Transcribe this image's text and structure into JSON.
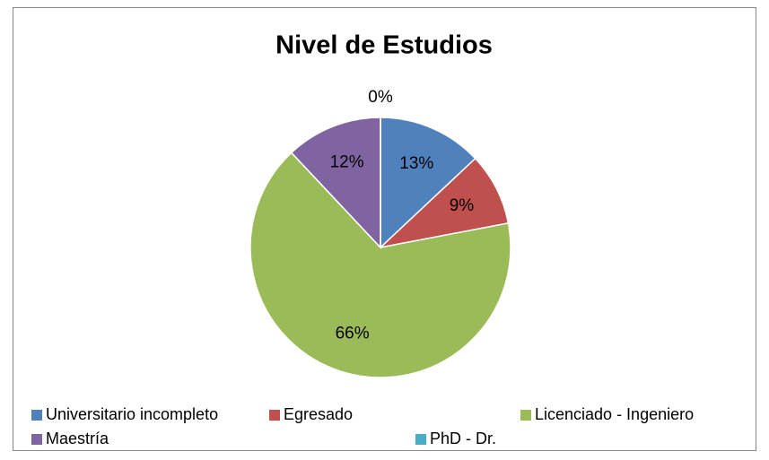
{
  "chart_data": {
    "type": "pie",
    "title": "Nivel de Estudios",
    "categories": [
      "Universitario incompleto",
      "Egresado",
      "Licenciado - Ingeniero",
      "Maestría",
      "PhD - Dr."
    ],
    "values": [
      13,
      9,
      66,
      12,
      0
    ],
    "value_labels": [
      "13%",
      "9%",
      "66%",
      "12%",
      "0%"
    ],
    "colors": [
      "#4f81bd",
      "#c0504d",
      "#9bbb59",
      "#8064a2",
      "#4bacc6"
    ],
    "legend": "bottom"
  }
}
